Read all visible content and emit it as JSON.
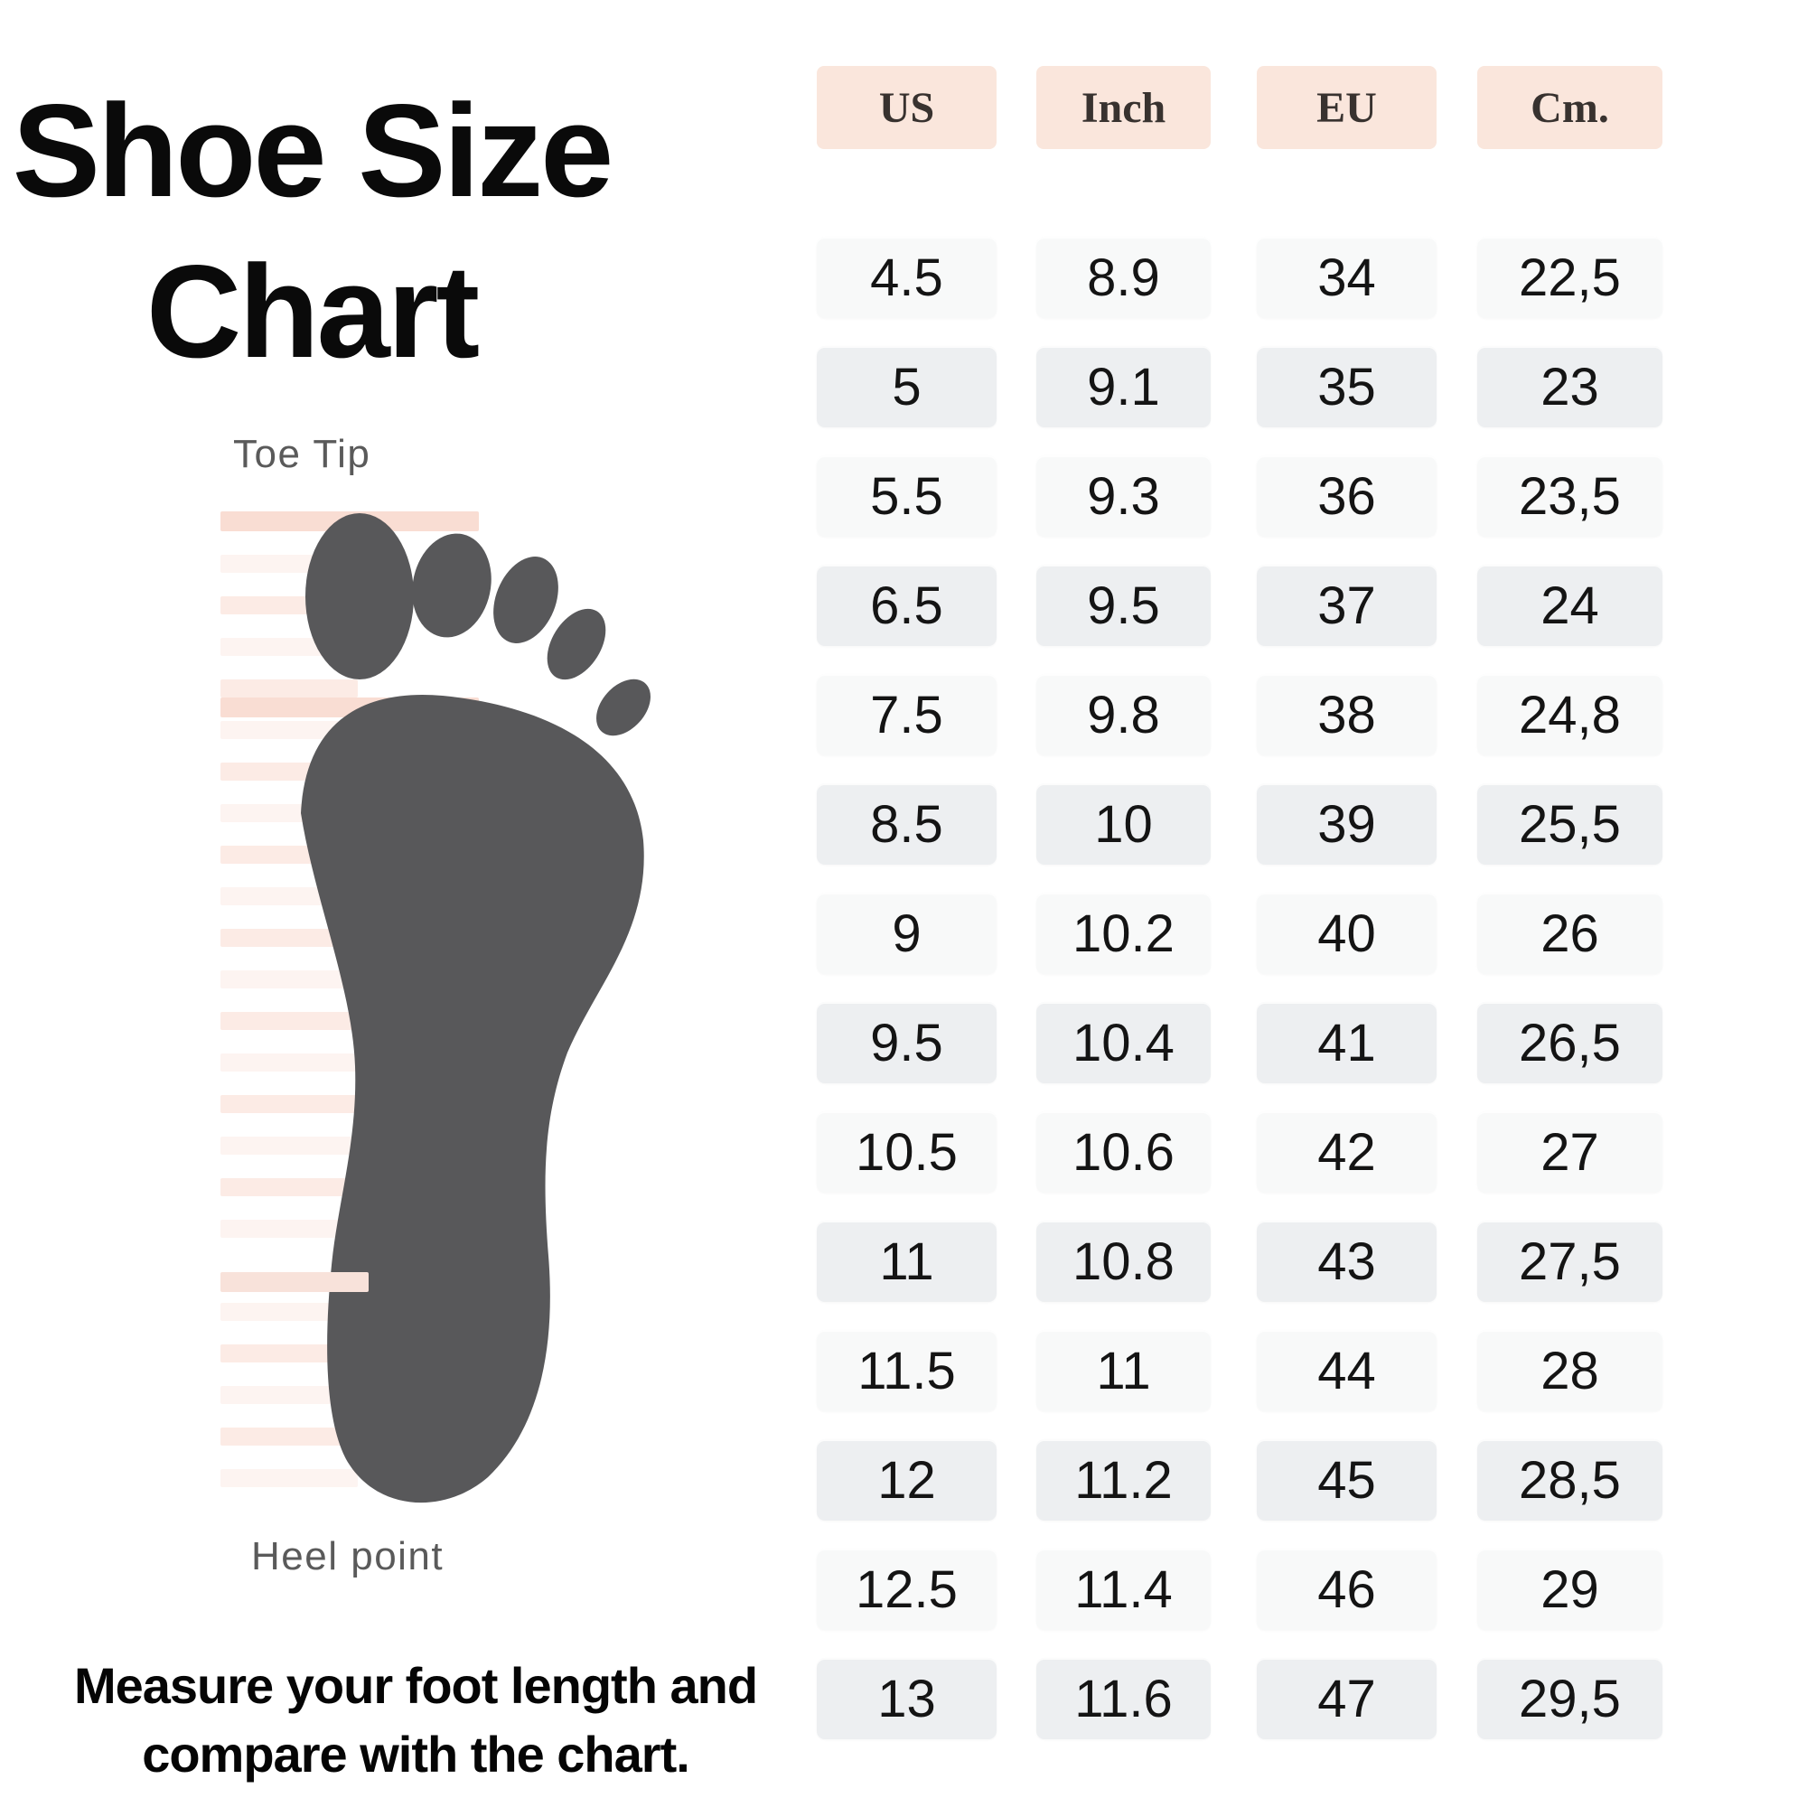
{
  "title": {
    "line1": "Shoe Size",
    "line2": "Chart"
  },
  "illustration": {
    "toe_tip_label": "Toe Tip",
    "heel_point_label": "Heel point"
  },
  "footer": {
    "line1": "Measure your foot length and",
    "line2": "compare with the chart."
  },
  "chart_data": {
    "type": "table",
    "title": "Shoe Size Chart",
    "columns": [
      "US",
      "Inch",
      "EU",
      "Cm."
    ],
    "rows": [
      [
        "4.5",
        "8.9",
        "34",
        "22,5"
      ],
      [
        "5",
        "9.1",
        "35",
        "23"
      ],
      [
        "5.5",
        "9.3",
        "36",
        "23,5"
      ],
      [
        "6.5",
        "9.5",
        "37",
        "24"
      ],
      [
        "7.5",
        "9.8",
        "38",
        "24,8"
      ],
      [
        "8.5",
        "10",
        "39",
        "25,5"
      ],
      [
        "9",
        "10.2",
        "40",
        "26"
      ],
      [
        "9.5",
        "10.4",
        "41",
        "26,5"
      ],
      [
        "10.5",
        "10.6",
        "42",
        "27"
      ],
      [
        "11",
        "10.8",
        "43",
        "27,5"
      ],
      [
        "11.5",
        "11",
        "44",
        "28"
      ],
      [
        "12",
        "11.2",
        "45",
        "28,5"
      ],
      [
        "12.5",
        "11.4",
        "46",
        "29"
      ],
      [
        "13",
        "11.6",
        "47",
        "29,5"
      ]
    ]
  },
  "colors": {
    "header_bg": "#fae6dc",
    "row_light": "#f8f9f9",
    "row_dark": "#edeff1",
    "foot": "#58585a",
    "ruler_stripe_a": "#fcebe5",
    "ruler_stripe_b": "#fdf4f1",
    "ruler_marker": "#f9ddd3",
    "ruler_marker_over": "#f8e2da",
    "label_gray": "#5a5a5a"
  }
}
